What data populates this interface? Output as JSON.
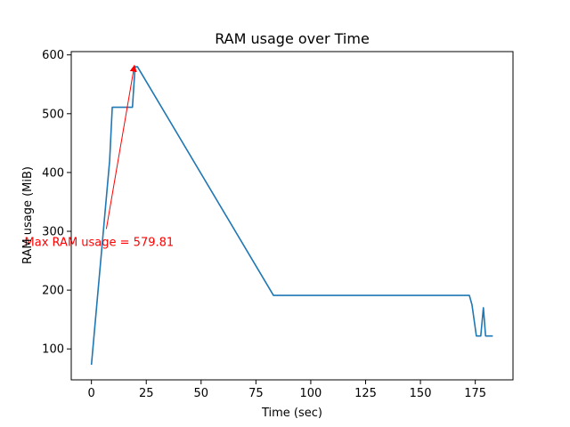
{
  "chart_data": {
    "type": "line",
    "title": "RAM usage over Time",
    "xlabel": "Time (sec)",
    "ylabel": "RAM usage (MiB)",
    "xlim": [
      -9.2,
      192.2
    ],
    "ylim": [
      47.4,
      605.6
    ],
    "xticks": [
      0,
      25,
      50,
      75,
      100,
      125,
      150,
      175
    ],
    "yticks": [
      100,
      200,
      300,
      400,
      500,
      600
    ],
    "grid": false,
    "series": [
      {
        "color": "#1f77b4",
        "x": [
          0,
          8.3,
          9.5,
          18.7,
          19.9,
          21.0,
          83.0,
          172.3,
          173.5,
          175.5,
          177.5,
          178.7,
          179.7,
          183.0
        ],
        "y": [
          73,
          420,
          511,
          511,
          579.8,
          579.8,
          191,
          191,
          175,
          122,
          122,
          170,
          122,
          122
        ]
      }
    ],
    "annotations": [
      {
        "text": "Max RAM usage = 579.81",
        "color": "#ff0000",
        "text_x": -30.5,
        "text_y": 282,
        "arrow_from": [
          6.8,
          304
        ],
        "arrow_to": [
          19.6,
          582
        ]
      }
    ]
  }
}
